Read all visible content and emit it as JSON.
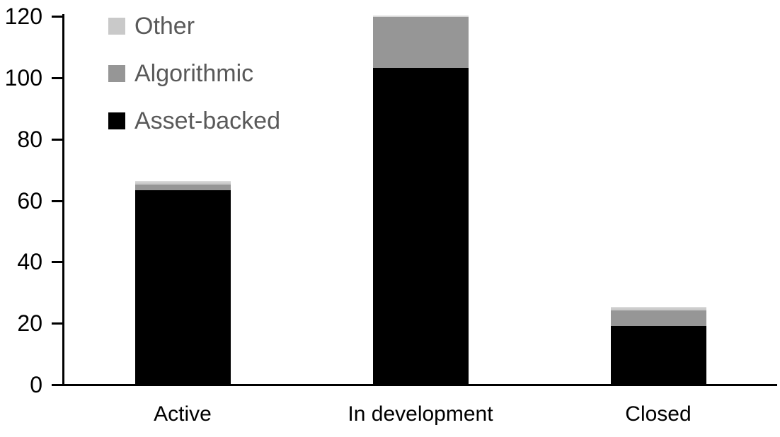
{
  "chart_data": {
    "type": "bar",
    "stacked": true,
    "title": "",
    "xlabel": "",
    "ylabel": "",
    "categories": [
      "Active",
      "In development",
      "Closed"
    ],
    "series": [
      {
        "name": "Asset-backed",
        "color": "#000000",
        "values": [
          63,
          103,
          19
        ]
      },
      {
        "name": "Algorithmic",
        "color": "#969696",
        "values": [
          2,
          17,
          5
        ]
      },
      {
        "name": "Other",
        "color": "#c9c9c9",
        "values": [
          1,
          0,
          1
        ]
      }
    ],
    "totals": [
      66,
      120,
      25
    ],
    "ylim": [
      0,
      120
    ],
    "yticks": [
      0,
      20,
      40,
      60,
      80,
      100,
      120
    ],
    "grid": false,
    "legend_position": "top-left",
    "legend_order_top_to_bottom": [
      "Other",
      "Algorithmic",
      "Asset-backed"
    ],
    "legend_text_color": "#595959",
    "axis_color": "#000000",
    "tick_label_color": "#000000",
    "background_color": "#ffffff"
  }
}
